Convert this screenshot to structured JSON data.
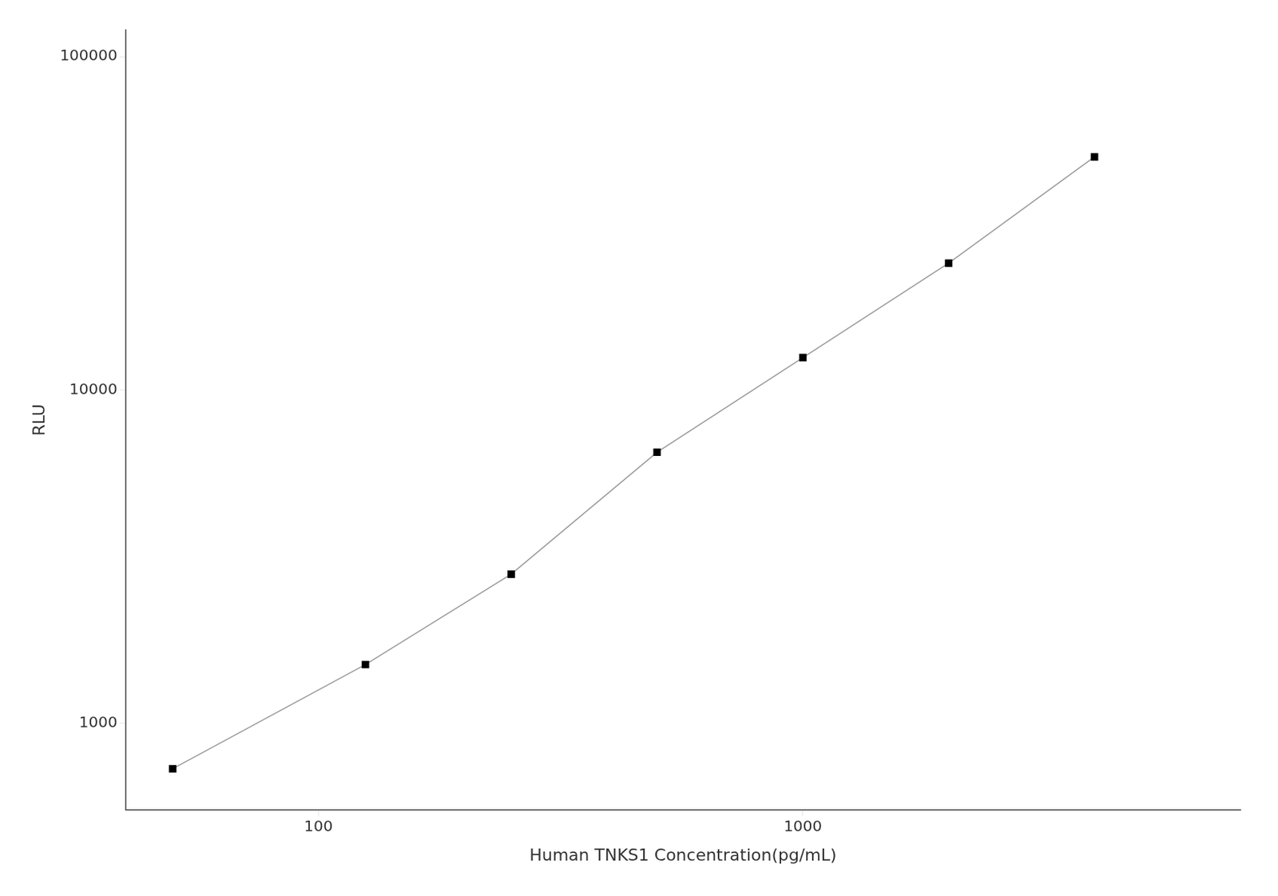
{
  "chart_data": {
    "type": "line",
    "x": [
      50,
      125,
      250,
      500,
      1000,
      2000,
      4000
    ],
    "values": [
      730,
      1500,
      2800,
      6500,
      12500,
      24000,
      50000
    ],
    "xlabel": "Human TNKS1 Concentration(pg/mL)",
    "ylabel": "RLU",
    "xlim": [
      40,
      8000
    ],
    "ylim": [
      550,
      120000
    ],
    "xticks": [
      100,
      1000
    ],
    "yticks": [
      1000,
      10000,
      100000
    ],
    "log": true,
    "grid": false,
    "color": "#999999",
    "colors": [
      "#000000",
      "#000000",
      "#000000",
      "#000000",
      "#000000",
      "#000000",
      "#000000"
    ],
    "marker": "square"
  }
}
